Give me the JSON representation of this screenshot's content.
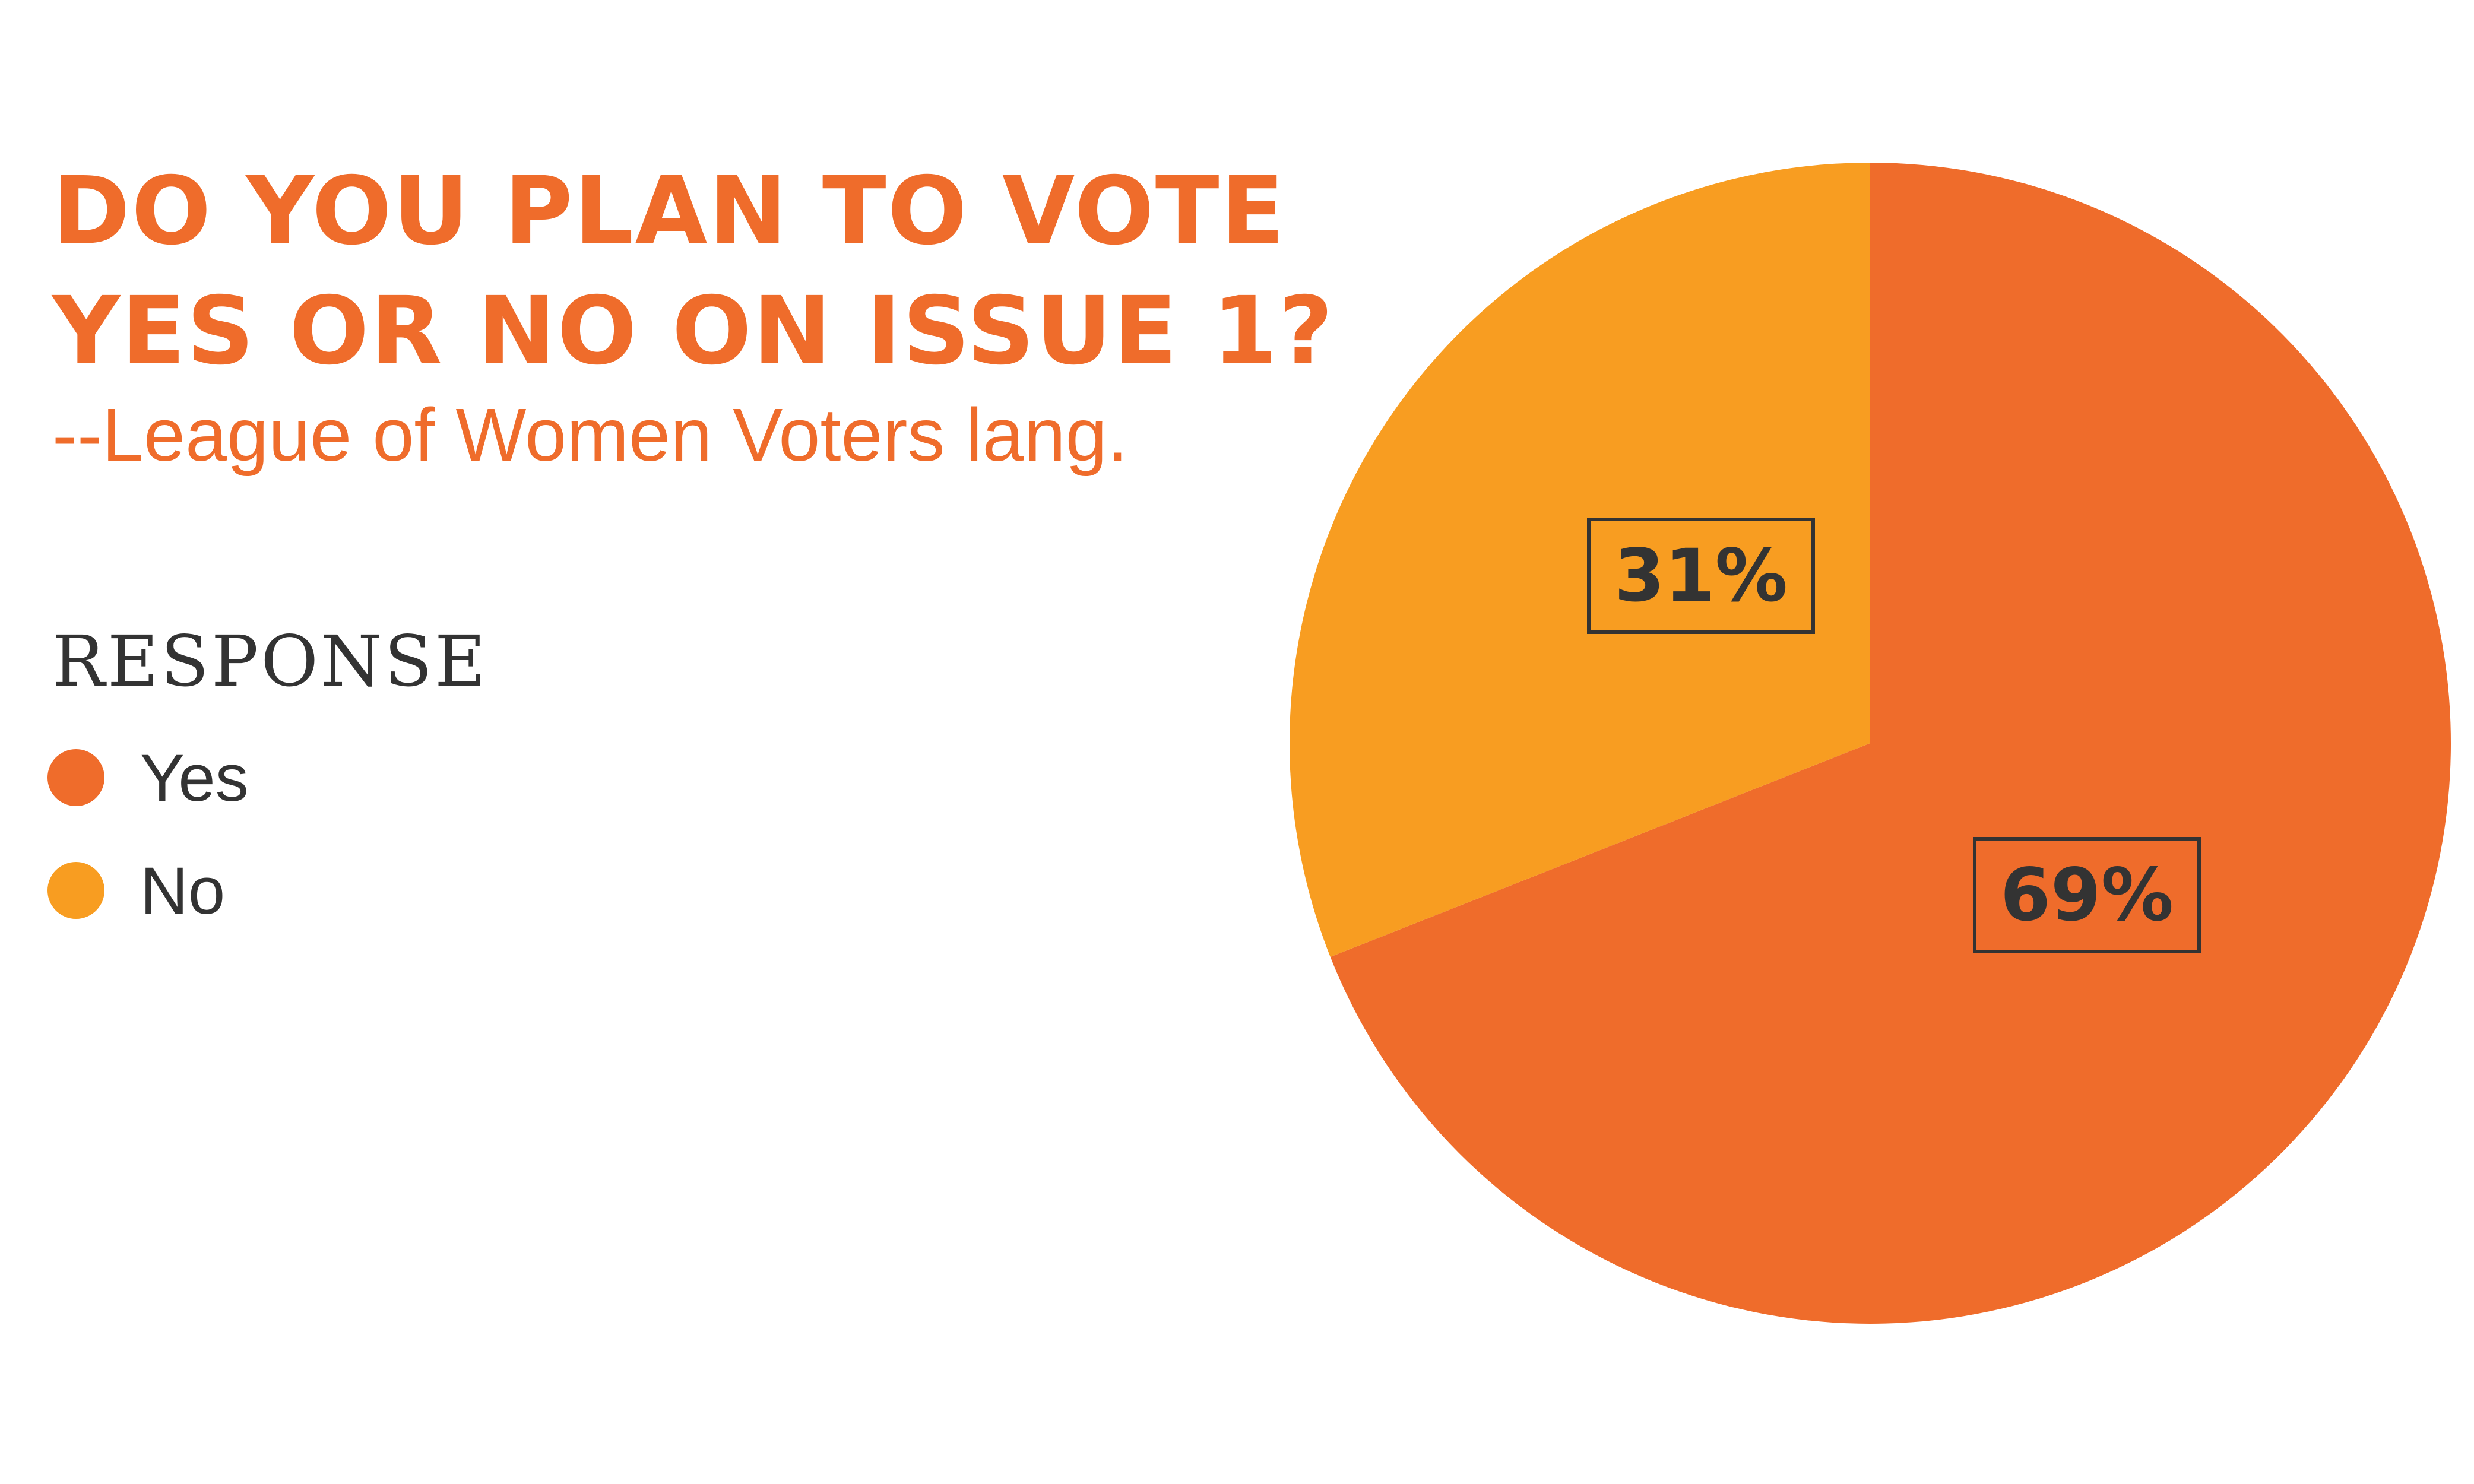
{
  "chart_data": {
    "type": "pie",
    "title": "DO YOU PLAN TO VOTE YES OR NO ON ISSUE 1?",
    "title_lines": [
      "DO YOU PLAN TO VOTE",
      "YES OR NO ON ISSUE 1?"
    ],
    "subtitle": "--League of Women Voters lang.",
    "legend_title": "RESPONSE",
    "legend_placement": "left",
    "categories": [
      "Yes",
      "No"
    ],
    "values": [
      69,
      31
    ],
    "labels": [
      "69%",
      "31%"
    ],
    "colors": [
      "#ef6c2b",
      "#f89d21"
    ]
  }
}
